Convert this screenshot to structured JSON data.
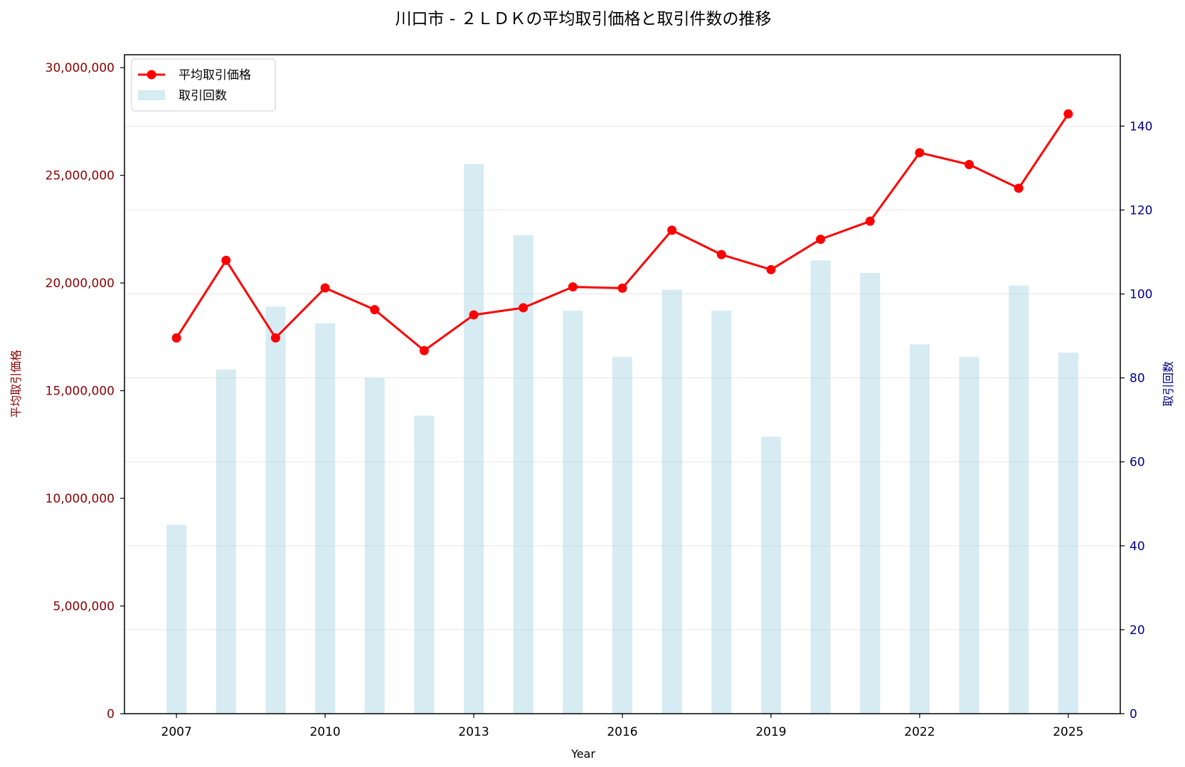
{
  "chart_data": {
    "type": "bar+line",
    "title": "川口市 - ２ＬＤＫの平均取引価格と取引件数の推移",
    "xlabel": "Year",
    "ylabel_left": "平均取引価格",
    "ylabel_right": "取引回数",
    "years": [
      2007,
      2008,
      2009,
      2010,
      2011,
      2012,
      2013,
      2014,
      2015,
      2016,
      2017,
      2018,
      2019,
      2020,
      2021,
      2022,
      2023,
      2024,
      2025
    ],
    "x_ticks": [
      "2007",
      "2010",
      "2013",
      "2016",
      "2019",
      "2022",
      "2025"
    ],
    "ylim_left": [
      0,
      30600000
    ],
    "ylim_right": [
      0,
      157
    ],
    "y_ticks_left": [
      "0",
      "5,000,000",
      "10,000,000",
      "15,000,000",
      "20,000,000",
      "25,000,000",
      "30,000,000"
    ],
    "y_ticks_right": [
      "0",
      "20",
      "40",
      "60",
      "80",
      "100",
      "120",
      "140"
    ],
    "grid": "horizontal, right-axis ticks",
    "legend_position": "top-left",
    "series": [
      {
        "name": "平均取引価格",
        "type": "line",
        "axis": "left",
        "color": "#ff0000",
        "values": [
          17450000,
          21050000,
          17450000,
          19770000,
          18760000,
          16860000,
          18520000,
          18850000,
          19820000,
          19760000,
          22450000,
          21320000,
          20620000,
          22030000,
          22870000,
          26050000,
          25500000,
          24400000,
          27850000
        ]
      },
      {
        "name": "取引回数",
        "type": "bar",
        "axis": "right",
        "color": "#add8e6",
        "values": [
          45,
          82,
          97,
          93,
          80,
          71,
          131,
          114,
          96,
          85,
          101,
          96,
          66,
          108,
          105,
          88,
          85,
          102,
          86
        ]
      }
    ],
    "colors": {
      "left_axis": "#8b0000",
      "right_axis": "#00008b",
      "grid": "#e6e6e6"
    }
  }
}
